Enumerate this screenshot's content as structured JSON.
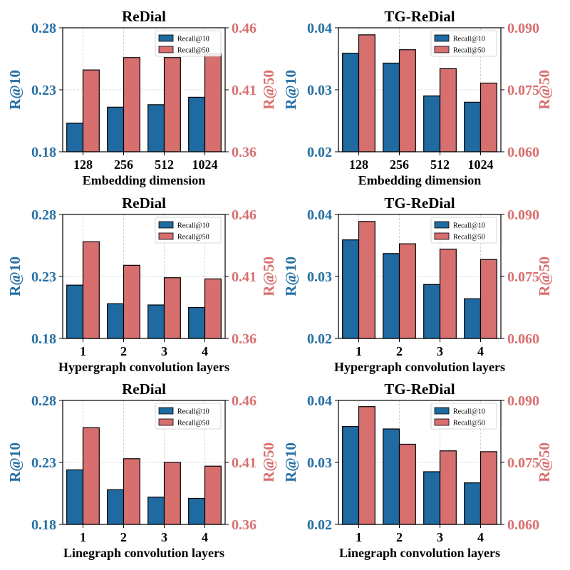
{
  "colors": {
    "recall10": "#1f6aa0",
    "recall50": "#d86f6f",
    "left_axis_text": "#2770a4",
    "right_axis_text": "#d86f6f",
    "grid": "#cccccc"
  },
  "chart_data": [
    {
      "type": "bar",
      "title": "ReDial",
      "xlabel": "Embedding dimension",
      "ylabel": "R@10",
      "ylabel_right": "R@50",
      "categories": [
        "128",
        "256",
        "512",
        "1024"
      ],
      "ylim": [
        0.18,
        0.28
      ],
      "ylim_right": [
        0.36,
        0.46
      ],
      "yticks": [
        "0.18",
        "0.23",
        "0.28"
      ],
      "yticks_right": [
        "0.36",
        "0.41",
        "0.46"
      ],
      "grid": true,
      "legend_position": "top-right",
      "series": [
        {
          "name": "Recall@10",
          "axis": "left",
          "values": [
            0.203,
            0.216,
            0.218,
            0.224
          ]
        },
        {
          "name": "Recall@50",
          "axis": "right",
          "values": [
            0.426,
            0.436,
            0.436,
            0.439
          ]
        }
      ]
    },
    {
      "type": "bar",
      "title": "TG-ReDial",
      "xlabel": "Embedding dimension",
      "ylabel": "R@10",
      "ylabel_right": "R@50",
      "categories": [
        "128",
        "256",
        "512",
        "1024"
      ],
      "ylim": [
        0.02,
        0.04
      ],
      "ylim_right": [
        0.06,
        0.09
      ],
      "yticks": [
        "0.02",
        "0.03",
        "0.04"
      ],
      "yticks_right": [
        "0.060",
        "0.075",
        "0.090"
      ],
      "grid": true,
      "legend_position": "top-right",
      "series": [
        {
          "name": "Recall@10",
          "axis": "left",
          "values": [
            0.0359,
            0.0343,
            0.029,
            0.028
          ]
        },
        {
          "name": "Recall@50",
          "axis": "right",
          "values": [
            0.0883,
            0.0847,
            0.0801,
            0.0766
          ]
        }
      ]
    },
    {
      "type": "bar",
      "title": "ReDial",
      "xlabel": "Hypergraph convolution layers",
      "ylabel": "R@10",
      "ylabel_right": "R@50",
      "categories": [
        "1",
        "2",
        "3",
        "4"
      ],
      "ylim": [
        0.18,
        0.28
      ],
      "ylim_right": [
        0.36,
        0.46
      ],
      "yticks": [
        "0.18",
        "0.23",
        "0.28"
      ],
      "yticks_right": [
        "0.36",
        "0.41",
        "0.46"
      ],
      "grid": true,
      "legend_position": "top-right",
      "series": [
        {
          "name": "Recall@10",
          "axis": "left",
          "values": [
            0.223,
            0.208,
            0.207,
            0.205
          ]
        },
        {
          "name": "Recall@50",
          "axis": "right",
          "values": [
            0.438,
            0.419,
            0.409,
            0.408
          ]
        }
      ]
    },
    {
      "type": "bar",
      "title": "TG-ReDial",
      "xlabel": "Hypergraph convolution layers",
      "ylabel": "R@10",
      "ylabel_right": "R@50",
      "categories": [
        "1",
        "2",
        "3",
        "4"
      ],
      "ylim": [
        0.02,
        0.04
      ],
      "ylim_right": [
        0.06,
        0.09
      ],
      "yticks": [
        "0.02",
        "0.03",
        "0.04"
      ],
      "yticks_right": [
        "0.060",
        "0.075",
        "0.090"
      ],
      "grid": true,
      "legend_position": "top-right",
      "series": [
        {
          "name": "Recall@10",
          "axis": "left",
          "values": [
            0.0359,
            0.0337,
            0.0287,
            0.0264
          ]
        },
        {
          "name": "Recall@50",
          "axis": "right",
          "values": [
            0.0883,
            0.0829,
            0.0816,
            0.0791
          ]
        }
      ]
    },
    {
      "type": "bar",
      "title": "ReDial",
      "xlabel": "Linegraph convolution layers",
      "ylabel": "R@10",
      "ylabel_right": "R@50",
      "categories": [
        "1",
        "2",
        "3",
        "4"
      ],
      "ylim": [
        0.18,
        0.28
      ],
      "ylim_right": [
        0.36,
        0.46
      ],
      "yticks": [
        "0.18",
        "0.23",
        "0.28"
      ],
      "yticks_right": [
        "0.36",
        "0.41",
        "0.46"
      ],
      "grid": true,
      "legend_position": "top-right",
      "series": [
        {
          "name": "Recall@10",
          "axis": "left",
          "values": [
            0.224,
            0.208,
            0.202,
            0.201
          ]
        },
        {
          "name": "Recall@50",
          "axis": "right",
          "values": [
            0.438,
            0.413,
            0.41,
            0.407
          ]
        }
      ]
    },
    {
      "type": "bar",
      "title": "TG-ReDial",
      "xlabel": "Linegraph convolution layers",
      "ylabel": "R@10",
      "ylabel_right": "R@50",
      "categories": [
        "1",
        "2",
        "3",
        "4"
      ],
      "ylim": [
        0.02,
        0.04
      ],
      "ylim_right": [
        0.06,
        0.09
      ],
      "yticks": [
        "0.02",
        "0.03",
        "0.04"
      ],
      "yticks_right": [
        "0.060",
        "0.075",
        "0.090"
      ],
      "grid": true,
      "legend_position": "top-right",
      "series": [
        {
          "name": "Recall@10",
          "axis": "left",
          "values": [
            0.0358,
            0.0354,
            0.0285,
            0.0267
          ]
        },
        {
          "name": "Recall@50",
          "axis": "right",
          "values": [
            0.0885,
            0.0794,
            0.0778,
            0.0776
          ]
        }
      ]
    }
  ]
}
